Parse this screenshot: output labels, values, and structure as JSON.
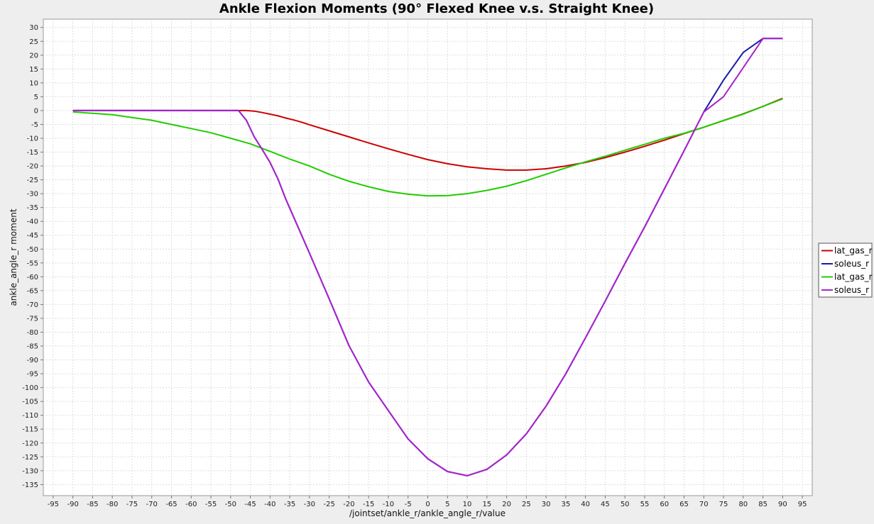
{
  "chart_data": {
    "type": "line",
    "title": "Ankle Flexion Moments (90° Flexed Knee v.s. Straight Knee)",
    "xlabel": "/jointset/ankle_r/ankle_angle_r/value",
    "ylabel": "ankle_angle_r moment",
    "xlim": [
      -97.5,
      97.5
    ],
    "ylim": [
      -139,
      33
    ],
    "x_ticks": [
      -95,
      -90,
      -85,
      -80,
      -75,
      -70,
      -65,
      -60,
      -55,
      -50,
      -45,
      -40,
      -35,
      -30,
      -25,
      -20,
      -15,
      -10,
      -5,
      0,
      5,
      10,
      15,
      20,
      25,
      30,
      35,
      40,
      45,
      50,
      55,
      60,
      65,
      70,
      75,
      80,
      85,
      90,
      95
    ],
    "y_ticks": [
      30,
      25,
      20,
      15,
      10,
      5,
      0,
      -5,
      -10,
      -15,
      -20,
      -25,
      -30,
      -35,
      -40,
      -45,
      -50,
      -55,
      -60,
      -65,
      -70,
      -75,
      -80,
      -85,
      -90,
      -95,
      -100,
      -105,
      -110,
      -115,
      -120,
      -125,
      -130,
      -135
    ],
    "grid": true,
    "legend_position": "right",
    "series": [
      {
        "name": "lat_gas_r",
        "color": "#cc0000",
        "x": [
          -90,
          -80,
          -70,
          -60,
          -50,
          -46,
          -44,
          -42,
          -40,
          -38,
          -36,
          -34,
          -32,
          -30,
          -25,
          -20,
          -15,
          -10,
          -5,
          0,
          5,
          10,
          15,
          20,
          25,
          30,
          35,
          40,
          45,
          50,
          55,
          60,
          65,
          70,
          75,
          80,
          85,
          90
        ],
        "y": [
          0,
          0,
          0,
          0,
          0,
          0,
          -0.2,
          -0.7,
          -1.3,
          -1.9,
          -2.7,
          -3.4,
          -4.2,
          -5.1,
          -7.3,
          -9.5,
          -11.7,
          -13.8,
          -15.8,
          -17.7,
          -19.2,
          -20.3,
          -21,
          -21.5,
          -21.5,
          -21,
          -20,
          -18.7,
          -17,
          -15,
          -12.9,
          -10.7,
          -8.3,
          -6,
          -3.6,
          -1.2,
          1.5,
          4.4
        ]
      },
      {
        "name": "soleus_r",
        "color": "#1a1aaa",
        "x": [
          -90,
          -80,
          -70,
          -60,
          -50,
          -48,
          -46,
          -44,
          -42,
          -40,
          -38,
          -36,
          -34,
          -32,
          -30,
          -25,
          -20,
          -15,
          -10,
          -5,
          0,
          5,
          10,
          15,
          20,
          25,
          30,
          35,
          40,
          45,
          50,
          55,
          60,
          65,
          70,
          75,
          80,
          85,
          90
        ],
        "y": [
          0,
          0,
          0,
          0,
          0,
          0,
          -3.5,
          -9.5,
          -14,
          -18.7,
          -24.7,
          -32,
          -38.5,
          -45,
          -51.5,
          -68,
          -84.8,
          -98,
          -108.3,
          -118.5,
          -125.7,
          -130.3,
          -131.8,
          -129.5,
          -124.3,
          -116.7,
          -106.7,
          -95,
          -82,
          -68.8,
          -55.2,
          -42,
          -28.3,
          -14.5,
          -0.5,
          11,
          21,
          26,
          26
        ]
      },
      {
        "name": "lat_gas_r",
        "color": "#22cc00",
        "x": [
          -90,
          -85,
          -80,
          -75,
          -70,
          -65,
          -60,
          -55,
          -50,
          -45,
          -40,
          -35,
          -30,
          -25,
          -20,
          -15,
          -10,
          -5,
          0,
          5,
          10,
          15,
          20,
          25,
          30,
          35,
          40,
          45,
          50,
          55,
          60,
          65,
          70,
          75,
          80,
          85,
          90
        ],
        "y": [
          -0.5,
          -1,
          -1.5,
          -2.5,
          -3.5,
          -5,
          -6.5,
          -8,
          -10,
          -12,
          -14.7,
          -17.5,
          -20,
          -23,
          -25.5,
          -27.5,
          -29.2,
          -30.2,
          -30.8,
          -30.7,
          -30,
          -28.8,
          -27.3,
          -25.3,
          -23,
          -20.7,
          -18.5,
          -16.5,
          -14.3,
          -12.2,
          -10,
          -8.2,
          -6,
          -3.6,
          -1.3,
          1.5,
          4.2
        ]
      },
      {
        "name": "soleus_r",
        "color": "#aa22cc",
        "x": [
          -90,
          -80,
          -70,
          -60,
          -50,
          -48,
          -46,
          -44,
          -42,
          -40,
          -38,
          -36,
          -34,
          -32,
          -30,
          -25,
          -20,
          -15,
          -10,
          -5,
          0,
          5,
          10,
          15,
          20,
          25,
          30,
          35,
          40,
          45,
          50,
          55,
          60,
          65,
          70,
          75,
          80,
          85,
          90
        ],
        "y": [
          0,
          0,
          0,
          0,
          0,
          0,
          -3.5,
          -9.5,
          -14,
          -18.7,
          -24.7,
          -32,
          -38.5,
          -45,
          -51.5,
          -68,
          -84.8,
          -98,
          -108.3,
          -118.5,
          -125.7,
          -130.3,
          -131.8,
          -129.5,
          -124.3,
          -116.7,
          -106.7,
          -95,
          -82,
          -68.8,
          -55.2,
          -42,
          -28.3,
          -14.5,
          -0.5,
          5,
          15.5,
          26,
          26
        ]
      }
    ]
  }
}
